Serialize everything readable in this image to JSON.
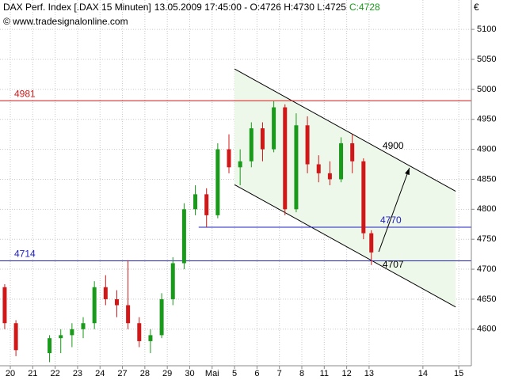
{
  "header": {
    "title": "DAX Perf. Index [.DAX  15 Minuten]",
    "quote": "13.05.2009 17:45:00 - O:4726 H:4730 L:4725",
    "close": "C:4728",
    "source": "© www.tradesignalonline.com",
    "currency": "€"
  },
  "chart_data": {
    "type": "candlestick",
    "xlim": [
      -0.46,
      20.56
    ],
    "ylim": [
      4539,
      5149
    ],
    "xticks": [
      {
        "value": 0,
        "label": "20"
      },
      {
        "value": 1,
        "label": "21"
      },
      {
        "value": 2,
        "label": "22"
      },
      {
        "value": 3,
        "label": "23"
      },
      {
        "value": 4,
        "label": "24"
      },
      {
        "value": 5,
        "label": "27"
      },
      {
        "value": 6,
        "label": "28"
      },
      {
        "value": 7,
        "label": "29"
      },
      {
        "value": 8,
        "label": "30"
      },
      {
        "value": 9,
        "label": "Mai"
      },
      {
        "value": 10,
        "label": "5"
      },
      {
        "value": 11,
        "label": "6"
      },
      {
        "value": 12,
        "label": "7"
      },
      {
        "value": 13,
        "label": "8"
      },
      {
        "value": 14,
        "label": "11"
      },
      {
        "value": 15,
        "label": "12"
      },
      {
        "value": 16,
        "label": "13"
      },
      {
        "value": 18.4,
        "label": "14"
      },
      {
        "value": 20,
        "label": "15"
      }
    ],
    "yticks": [
      4600,
      4650,
      4700,
      4750,
      4800,
      4850,
      4900,
      4950,
      5000,
      5050,
      5100
    ],
    "grid": true,
    "up_color": "#1a9a1a",
    "down_color": "#d01818",
    "x": [
      -0.25,
      0.25,
      1.75,
      2.25,
      2.75,
      3.25,
      3.75,
      4.25,
      4.75,
      5.25,
      5.75,
      6.25,
      6.75,
      7.25,
      7.75,
      8.25,
      8.75,
      9.25,
      9.75,
      10.25,
      10.75,
      11.25,
      11.75,
      12.25,
      12.75,
      13.25,
      13.75,
      14.25,
      14.75,
      15.25,
      15.75,
      16.1
    ],
    "open": [
      4670,
      4610,
      4560,
      4585,
      4590,
      4600,
      4610,
      4670,
      4650,
      4640,
      4610,
      4580,
      4590,
      4650,
      4710,
      4800,
      4825,
      4790,
      4900,
      4870,
      4880,
      4935,
      4900,
      4970,
      4800,
      4940,
      4875,
      4860,
      4850,
      4910,
      4880,
      4760
    ],
    "high": [
      4675,
      4615,
      4590,
      4600,
      4610,
      4620,
      4680,
      4690,
      4665,
      4715,
      4620,
      4600,
      4660,
      4720,
      4810,
      4840,
      4835,
      4910,
      4925,
      4900,
      4945,
      4945,
      4980,
      4975,
      4960,
      4955,
      4890,
      4880,
      4920,
      4925,
      4885,
      4765
    ],
    "low": [
      4600,
      4555,
      4545,
      4560,
      4570,
      4585,
      4600,
      4640,
      4620,
      4600,
      4570,
      4560,
      4585,
      4640,
      4700,
      4790,
      4770,
      4785,
      4860,
      4840,
      4870,
      4880,
      4895,
      4790,
      4795,
      4860,
      4845,
      4840,
      4845,
      4860,
      4750,
      4707
    ],
    "close": [
      4610,
      4565,
      4585,
      4590,
      4600,
      4610,
      4670,
      4650,
      4640,
      4610,
      4580,
      4590,
      4650,
      4710,
      4800,
      4825,
      4790,
      4900,
      4870,
      4880,
      4935,
      4900,
      4970,
      4800,
      4940,
      4875,
      4860,
      4850,
      4910,
      4880,
      4760,
      4728
    ],
    "levels": [
      {
        "value": 4981,
        "label": "4981",
        "color": "#d01818"
      },
      {
        "value": 4714,
        "label": "4714",
        "color": "#2020c0"
      },
      {
        "value": 4770,
        "label": "4770",
        "color": "#2020c0",
        "from": 8.4
      }
    ],
    "channel": {
      "color": "#eef8ea",
      "upper": {
        "x": [
          10,
          19.86
        ],
        "y": [
          5034,
          4830
        ]
      },
      "lower": {
        "x": [
          10,
          19.86
        ],
        "y": [
          4841,
          4637
        ]
      }
    },
    "arrow": {
      "x": [
        16.43,
        17.8
      ],
      "y": [
        4729,
        4869
      ]
    },
    "annotations": [
      {
        "label": "4900",
        "x": 16.6,
        "y": 4905
      },
      {
        "label": "4707",
        "x": 16.6,
        "y": 4707
      }
    ]
  }
}
